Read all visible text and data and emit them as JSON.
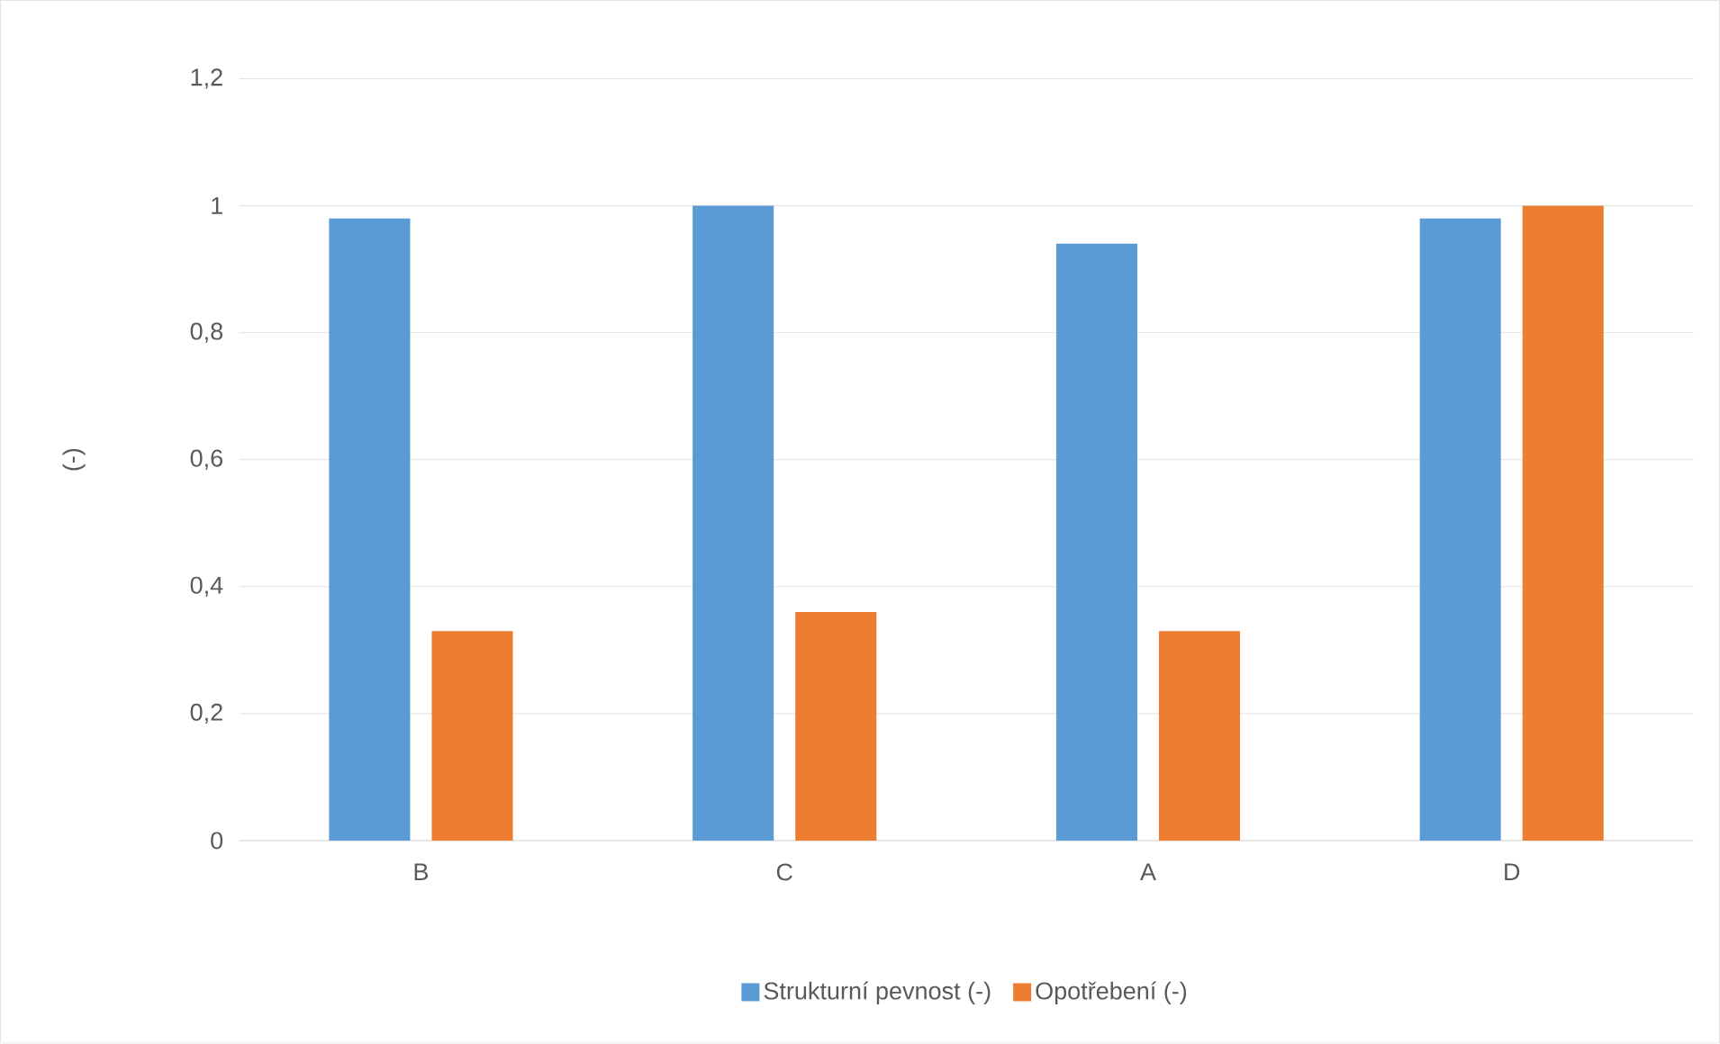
{
  "chart_data": {
    "type": "bar",
    "ylabel": "(-)",
    "categories": [
      "B",
      "C",
      "A",
      "D"
    ],
    "series": [
      {
        "name": "Strukturní pevnost (-)",
        "color": "#5b9bd5",
        "values": [
          0.98,
          1.0,
          0.94,
          0.98
        ]
      },
      {
        "name": "Opotřebení (-)",
        "color": "#ed7d31",
        "values": [
          0.33,
          0.36,
          0.33,
          1.0
        ]
      }
    ],
    "ylim": [
      0,
      1.2
    ],
    "yticks": [
      0,
      {
        "value": 0.2,
        "label": "0,2"
      },
      {
        "value": 0.4,
        "label": "0,4"
      },
      {
        "value": 0.6,
        "label": "0,6"
      },
      {
        "value": 0.8,
        "label": "0,8"
      },
      1,
      {
        "value": 1.2,
        "label": "1,2"
      }
    ],
    "grid": "y",
    "legend": "bottom"
  }
}
